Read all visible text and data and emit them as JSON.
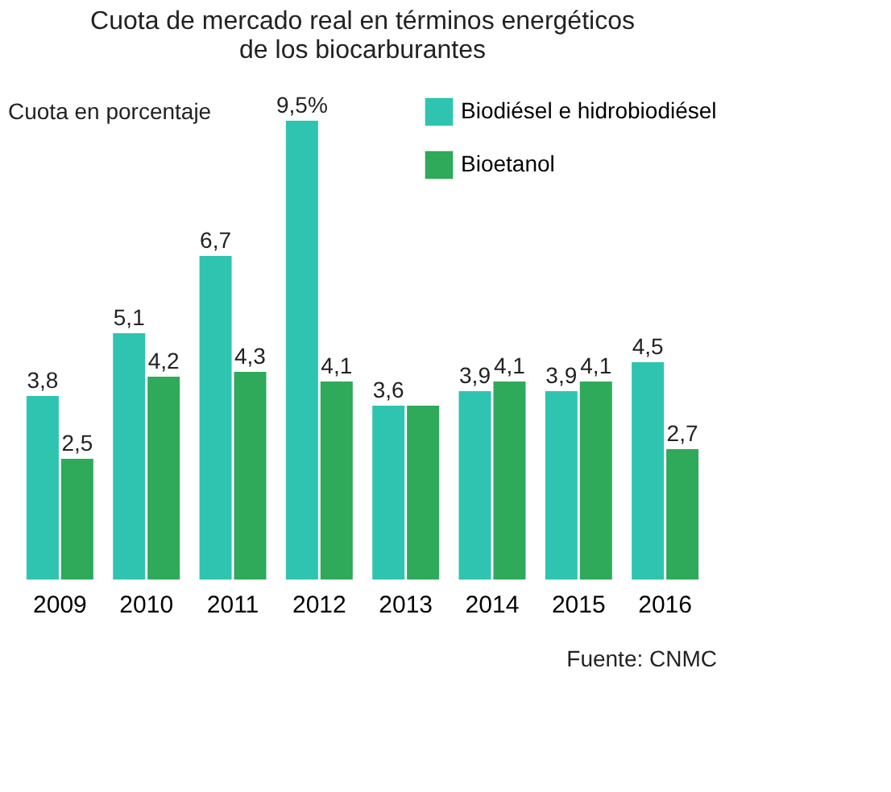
{
  "chart_data": {
    "type": "bar",
    "title": [
      "Cuota de mercado real en términos energéticos",
      "de los biocarburantes"
    ],
    "ylabel": "Cuota en porcentaje",
    "categories": [
      "2009",
      "2010",
      "2011",
      "2012",
      "2013",
      "2014",
      "2015",
      "2016"
    ],
    "series": [
      {
        "name": "Biodiésel e hidrobiodiésel",
        "color": "#2ec4b0",
        "values": [
          3.8,
          5.1,
          6.7,
          9.5,
          3.6,
          3.9,
          3.9,
          4.5
        ],
        "value_labels": [
          "3,8",
          "5,1",
          "6,7",
          "9,5%",
          "3,6",
          "3,9",
          "3,9",
          "4,5"
        ]
      },
      {
        "name": "Bioetanol",
        "color": "#2fa95a",
        "values": [
          2.5,
          4.2,
          4.3,
          4.1,
          3.6,
          4.1,
          4.1,
          2.7
        ],
        "value_labels": [
          "2,5",
          "4,2",
          "4,3",
          "4,1",
          null,
          "4,1",
          "4,1",
          "2,7"
        ]
      }
    ],
    "legend": "top right",
    "grid": false,
    "annotations": [
      "Fuente: CNMC"
    ]
  }
}
